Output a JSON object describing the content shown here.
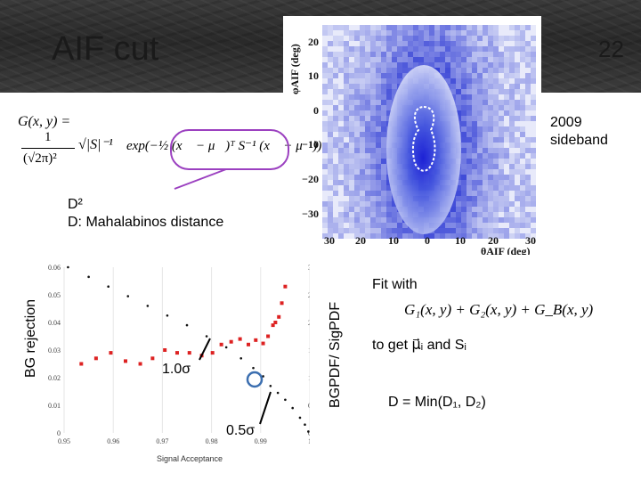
{
  "header": {
    "title": "AIF cut",
    "page_number": "22"
  },
  "gaussian_formula": {
    "lhs": "G(x, y) =",
    "coef_numerator": "1",
    "coef_denominator": "(√2π)²",
    "det": "√|S|⁻¹",
    "exponent": "exp(−½ (x⃗ − μ⃗)ᵀ S⁻¹ (x⃗ − μ⃗))"
  },
  "d2_label": {
    "line1": "D²",
    "line2": "D: Mahalabinos distance"
  },
  "sideband_label": {
    "line1": "2009",
    "line2": "sideband"
  },
  "histogram": {
    "y_axis_label": "φAIF (deg)",
    "x_axis_label": "θAIF (deg)",
    "y_ticks": [
      "20",
      "10",
      "0",
      "−10",
      "−20",
      "−30"
    ],
    "x_ticks": [
      "30",
      "20",
      "10",
      "0",
      "10",
      "20",
      "30"
    ]
  },
  "bg_rejection_label": "BG rejection",
  "ratio_label": "BGPDF/ SigPDF",
  "x_axis_title": "Signal Acceptance",
  "fit_text": {
    "line1": "Fit with",
    "formula": "G₁(x, y) + G₂(x, y) + G_B(x, y)",
    "line3": "to get μ⃗ᵢ and Sᵢ",
    "result": "D = Min(D₁, D₂)"
  },
  "annotations": {
    "one_sigma": "1.0σ",
    "half_sigma": "0.5σ"
  },
  "colors": {
    "formula_ellipse": "#9b40c0",
    "marker_circle": "#3c6fb0",
    "red_points": "#dd2222"
  },
  "chart_data": {
    "type": "scatter",
    "title": "",
    "xlabel": "Signal Acceptance",
    "ylabel": "BG rejection",
    "y2label": "BGPDF/ SigPDF",
    "xlim": [
      0.95,
      1.0
    ],
    "ylim": [
      0,
      0.06
    ],
    "y2lim": [
      0,
      3
    ],
    "x_ticks": [
      "0.95",
      "0.96",
      "0.97",
      "0.98",
      "0.99",
      "1"
    ],
    "y_ticks": [
      "0",
      "0.01",
      "0.02",
      "0.03",
      "0.04",
      "0.05",
      "0.06"
    ],
    "y2_ticks": [
      "0",
      "0.5",
      "1",
      "1.5",
      "2",
      "2.5",
      "3"
    ],
    "series": [
      {
        "axis": "left",
        "style": "black-dots",
        "x": [
          0.9508,
          0.955,
          0.959,
          0.963,
          0.967,
          0.971,
          0.975,
          0.979,
          0.983,
          0.986,
          0.9885,
          0.9905,
          0.992,
          0.9935,
          0.995,
          0.9965,
          0.998,
          0.999,
          0.9997
        ],
        "y": [
          0.06,
          0.0565,
          0.053,
          0.0495,
          0.046,
          0.0425,
          0.039,
          0.035,
          0.031,
          0.027,
          0.0235,
          0.0205,
          0.017,
          0.0145,
          0.012,
          0.009,
          0.0055,
          0.003,
          0.0005
        ]
      },
      {
        "axis": "right",
        "style": "red-squares",
        "x": [
          0.9535,
          0.9565,
          0.9595,
          0.9625,
          0.9655,
          0.968,
          0.9705,
          0.973,
          0.9755,
          0.978,
          0.9802,
          0.982,
          0.984,
          0.9858,
          0.9875,
          0.989,
          0.9905,
          0.9915,
          0.9925,
          0.993,
          0.9937,
          0.9943,
          0.995
        ],
        "y": [
          1.25,
          1.35,
          1.45,
          1.3,
          1.25,
          1.35,
          1.5,
          1.45,
          1.45,
          1.4,
          1.45,
          1.6,
          1.65,
          1.7,
          1.6,
          1.68,
          1.62,
          1.75,
          1.95,
          2.0,
          2.1,
          2.35,
          2.65
        ]
      }
    ]
  }
}
